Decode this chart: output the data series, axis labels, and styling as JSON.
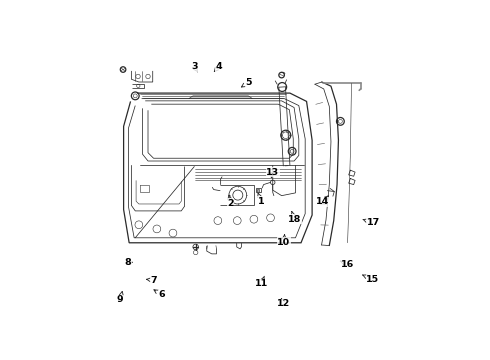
{
  "bg_color": "#ffffff",
  "line_color": "#2a2a2a",
  "gray_color": "#888888",
  "label_color": "#000000",
  "figsize": [
    4.9,
    3.6
  ],
  "dpi": 100,
  "parts_labels": {
    "1": {
      "lpos": [
        0.53,
        0.435
      ],
      "apos": [
        0.528,
        0.462
      ]
    },
    "2": {
      "lpos": [
        0.428,
        0.425
      ],
      "apos": [
        0.43,
        0.455
      ]
    },
    "3": {
      "lpos": [
        0.295,
        0.91
      ],
      "apos": [
        0.305,
        0.895
      ]
    },
    "4": {
      "lpos": [
        0.385,
        0.91
      ],
      "apos": [
        0.368,
        0.896
      ]
    },
    "5": {
      "lpos": [
        0.49,
        0.855
      ],
      "apos": [
        0.464,
        0.84
      ]
    },
    "6": {
      "lpos": [
        0.18,
        0.095
      ],
      "apos": [
        0.138,
        0.12
      ]
    },
    "7": {
      "lpos": [
        0.148,
        0.148
      ],
      "apos": [
        0.11,
        0.155
      ]
    },
    "8": {
      "lpos": [
        0.06,
        0.21
      ],
      "apos": [
        0.082,
        0.21
      ]
    },
    "9": {
      "lpos": [
        0.028,
        0.075
      ],
      "apos": [
        0.038,
        0.11
      ]
    },
    "10": {
      "lpos": [
        0.62,
        0.285
      ],
      "apos": [
        0.61,
        0.33
      ]
    },
    "11": {
      "lpos": [
        0.538,
        0.135
      ],
      "apos": [
        0.552,
        0.158
      ]
    },
    "12": {
      "lpos": [
        0.618,
        0.062
      ],
      "apos": [
        0.612,
        0.082
      ]
    },
    "13": {
      "lpos": [
        0.58,
        0.53
      ],
      "apos": [
        0.568,
        0.51
      ]
    },
    "14": {
      "lpos": [
        0.758,
        0.43
      ],
      "apos": [
        0.748,
        0.448
      ]
    },
    "15": {
      "lpos": [
        0.935,
        0.148
      ],
      "apos": [
        0.898,
        0.165
      ]
    },
    "16": {
      "lpos": [
        0.848,
        0.205
      ],
      "apos": [
        0.822,
        0.218
      ]
    },
    "17": {
      "lpos": [
        0.938,
        0.355
      ],
      "apos": [
        0.898,
        0.37
      ]
    },
    "18": {
      "lpos": [
        0.658,
        0.368
      ],
      "apos": [
        0.648,
        0.39
      ]
    },
    "10b": {
      "lpos": [
        0.62,
        0.285
      ],
      "apos": [
        0.61,
        0.33
      ]
    }
  }
}
